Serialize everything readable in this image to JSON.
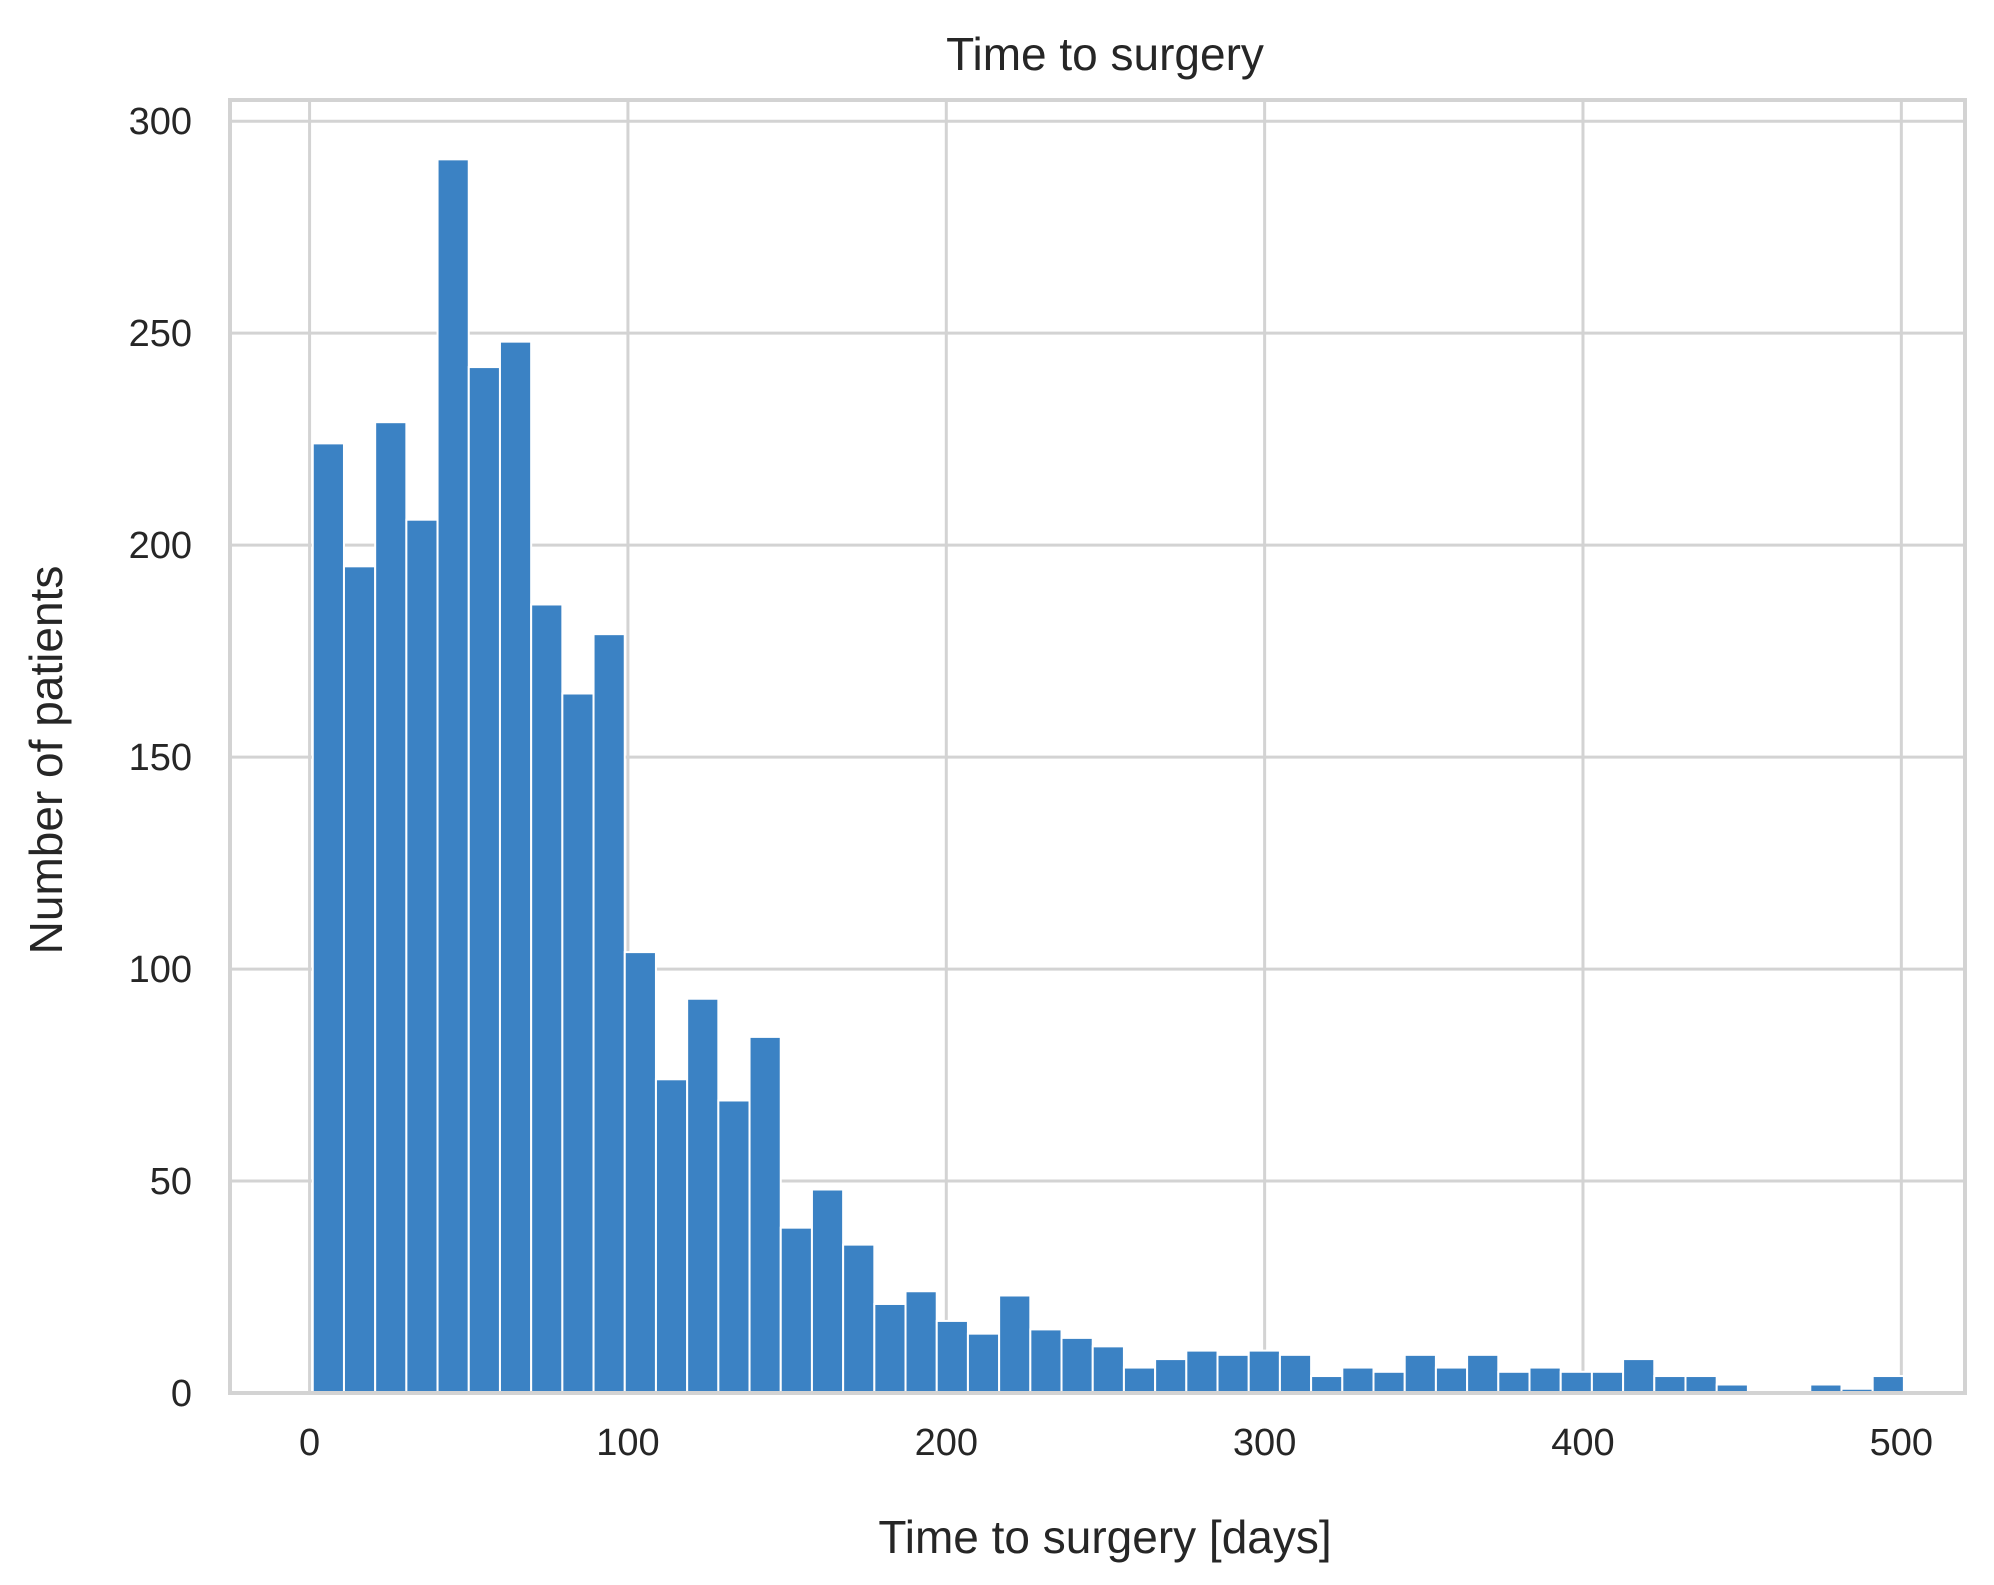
{
  "chart_data": {
    "type": "bar",
    "title": "Time to surgery",
    "xlabel": "Time to surgery [days]",
    "ylabel": "Number of patients",
    "xlim": [
      -25,
      520
    ],
    "ylim": [
      0,
      305
    ],
    "xticks": [
      0,
      100,
      200,
      300,
      400,
      500
    ],
    "yticks": [
      0,
      50,
      100,
      150,
      200,
      250,
      300
    ],
    "grid": true,
    "bin_width": 9.8,
    "bin_start": 1,
    "values": [
      224,
      195,
      229,
      206,
      291,
      242,
      248,
      186,
      165,
      179,
      104,
      74,
      93,
      69,
      84,
      39,
      48,
      35,
      21,
      24,
      17,
      14,
      23,
      15,
      13,
      11,
      6,
      8,
      10,
      9,
      10,
      9,
      4,
      6,
      5,
      9,
      6,
      9,
      5,
      6,
      5,
      5,
      8,
      4,
      4,
      2,
      0,
      0,
      2,
      1,
      4
    ],
    "colors": {
      "bar": "#3b82c4",
      "grid": "#d3d3d3",
      "frame": "#d3d3d3",
      "text": "#262626"
    }
  }
}
